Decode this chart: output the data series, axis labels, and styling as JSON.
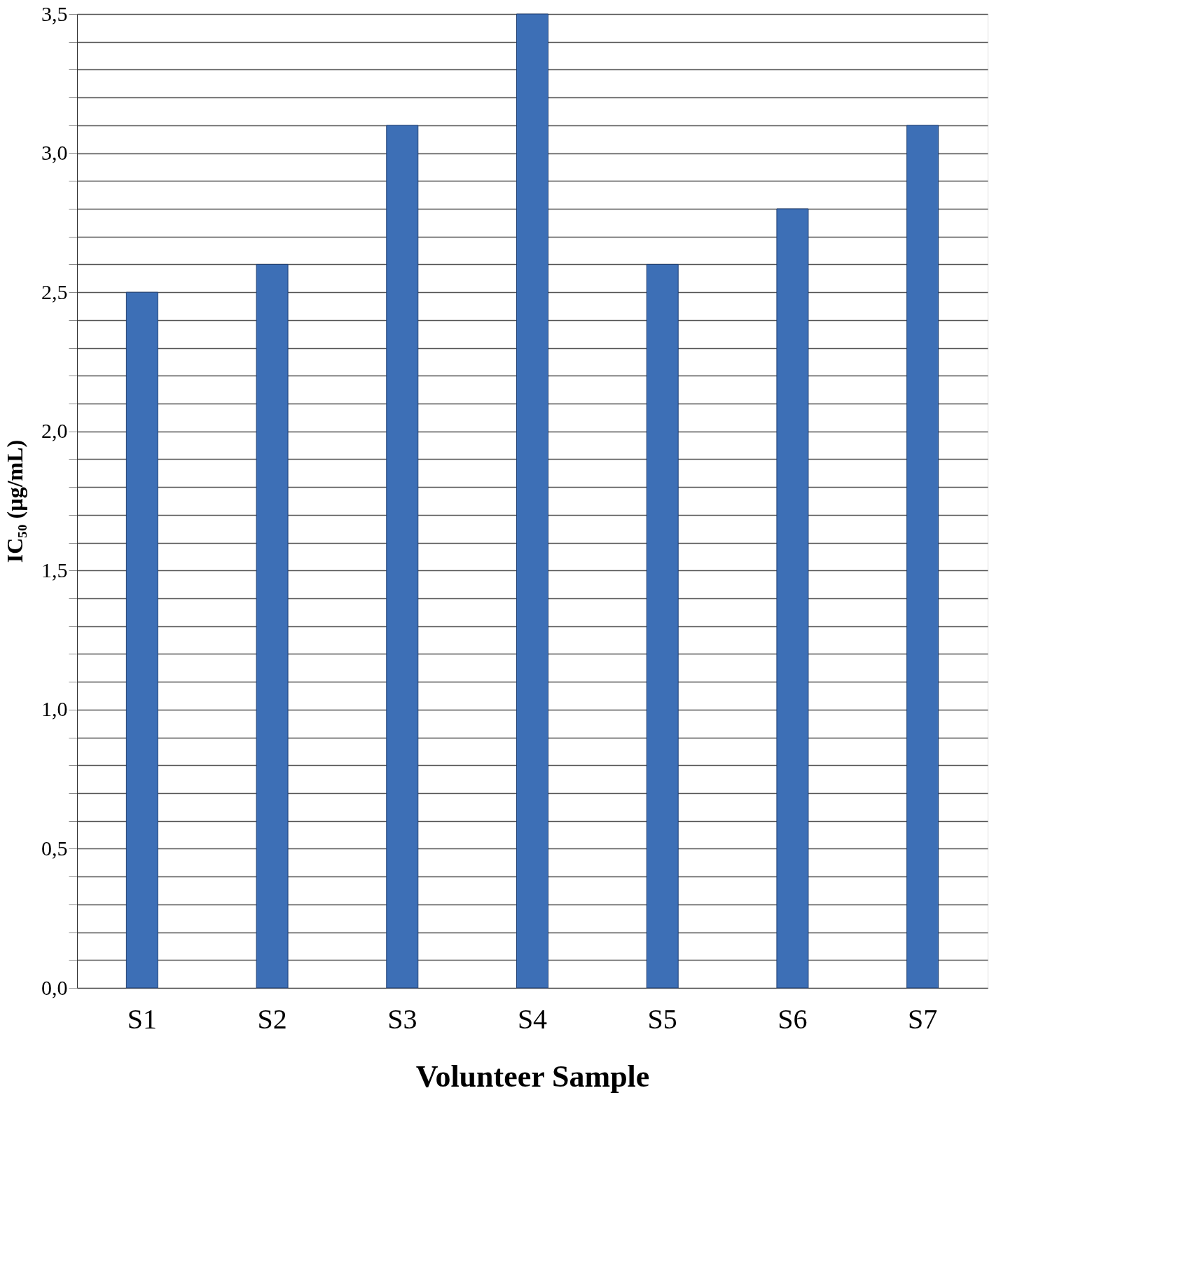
{
  "chart_data": {
    "type": "bar",
    "xlabel": "Volunteer Sample",
    "ylabel": "IC₅₀ (µg/mL)",
    "categories": [
      "S1",
      "S2",
      "S3",
      "S4",
      "S5",
      "S6",
      "S7"
    ],
    "values": [
      2.5,
      2.6,
      3.1,
      3.5,
      2.6,
      2.8,
      3.1
    ],
    "color": "#3d6fb6",
    "ylim": [
      0,
      3.5
    ],
    "yticks": [
      {
        "value": 0,
        "label": "0,0"
      },
      {
        "value": 0.1,
        "label": null
      },
      {
        "value": 0.2,
        "label": null
      },
      {
        "value": 0.3,
        "label": null
      },
      {
        "value": 0.4,
        "label": null
      },
      {
        "value": 0.5,
        "label": "0,5"
      },
      {
        "value": 0.6,
        "label": null
      },
      {
        "value": 0.7,
        "label": null
      },
      {
        "value": 0.8,
        "label": null
      },
      {
        "value": 0.9,
        "label": null
      },
      {
        "value": 1.0,
        "label": "1,0"
      },
      {
        "value": 1.1,
        "label": null
      },
      {
        "value": 1.2,
        "label": null
      },
      {
        "value": 1.3,
        "label": null
      },
      {
        "value": 1.4,
        "label": null
      },
      {
        "value": 1.5,
        "label": "1,5"
      },
      {
        "value": 1.6,
        "label": null
      },
      {
        "value": 1.7,
        "label": null
      },
      {
        "value": 1.8,
        "label": null
      },
      {
        "value": 1.9,
        "label": null
      },
      {
        "value": 2.0,
        "label": "2,0"
      },
      {
        "value": 2.1,
        "label": null
      },
      {
        "value": 2.2,
        "label": null
      },
      {
        "value": 2.3,
        "label": null
      },
      {
        "value": 2.4,
        "label": null
      },
      {
        "value": 2.5,
        "label": "2,5"
      },
      {
        "value": 2.6,
        "label": null
      },
      {
        "value": 2.7,
        "label": null
      },
      {
        "value": 2.8,
        "label": null
      },
      {
        "value": 2.9,
        "label": null
      },
      {
        "value": 3.0,
        "label": "3,0"
      },
      {
        "value": 3.1,
        "label": null
      },
      {
        "value": 3.2,
        "label": null
      },
      {
        "value": 3.3,
        "label": null
      },
      {
        "value": 3.4,
        "label": null
      },
      {
        "value": 3.5,
        "label": "3,5"
      }
    ],
    "grid": "y"
  }
}
